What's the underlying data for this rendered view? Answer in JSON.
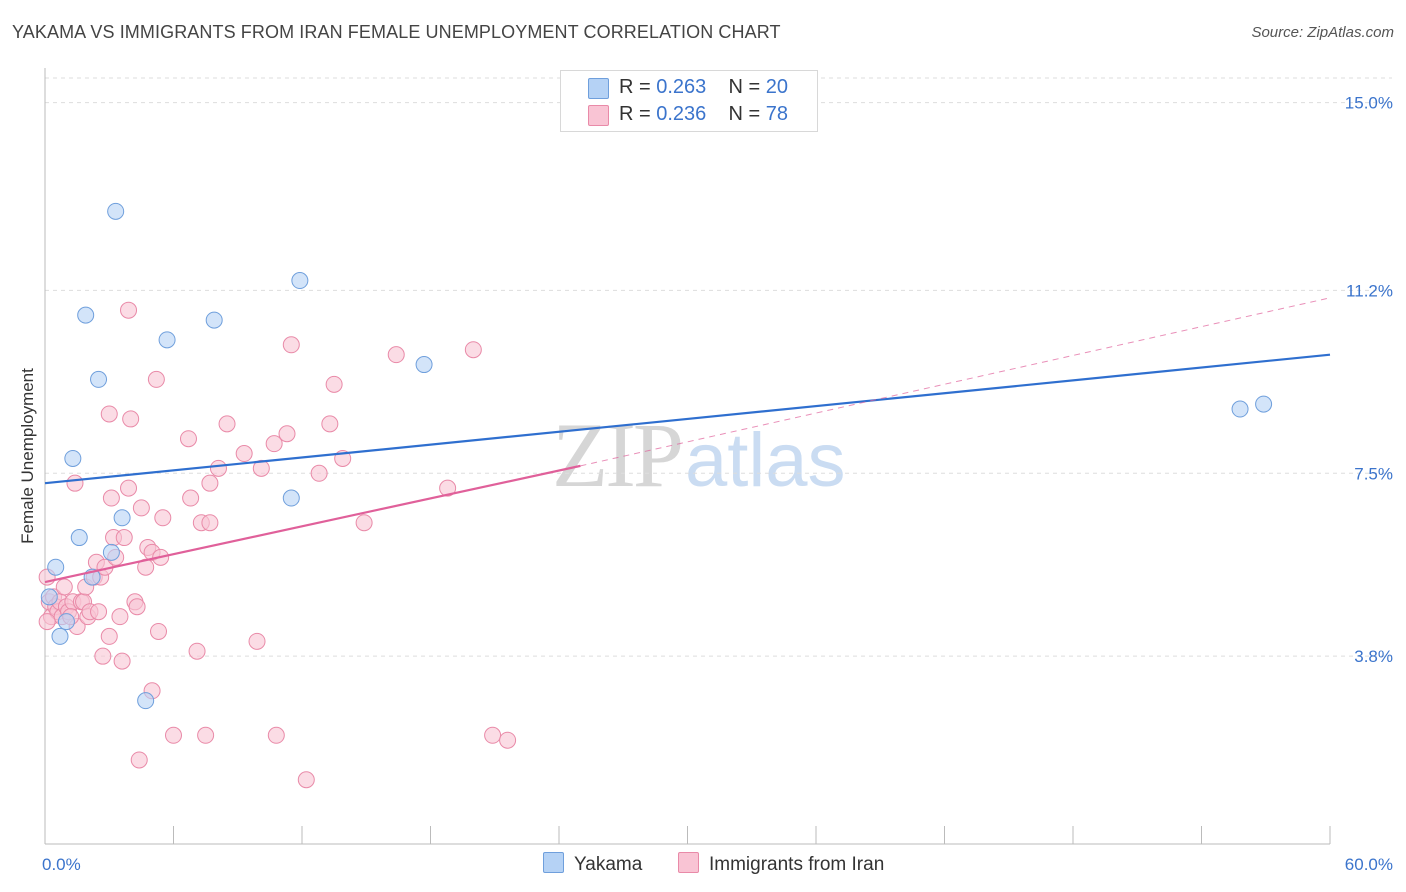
{
  "title": "YAKAMA VS IMMIGRANTS FROM IRAN FEMALE UNEMPLOYMENT CORRELATION CHART",
  "source": "Source: ZipAtlas.com",
  "watermark": {
    "zip": "ZIP",
    "atlas": "atlas"
  },
  "legend_top": [
    {
      "r_label": "R = ",
      "r_value": "0.263",
      "n_label": "N = ",
      "n_value": "20"
    },
    {
      "r_label": "R = ",
      "r_value": "0.236",
      "n_label": "N = ",
      "n_value": "78"
    }
  ],
  "legend_bottom": [
    "Yakama",
    "Immigrants from Iran"
  ],
  "colors": {
    "yakama_fill": "#b5d2f5",
    "yakama_stroke": "#6f9fdc",
    "yakama_line": "#2f6fcf",
    "iran_fill": "#f9c4d4",
    "iran_stroke": "#e98aa8",
    "iran_line": "#e0609a",
    "tick_label": "#3b74cc",
    "grid": "#dddddd"
  },
  "chart_data": {
    "type": "scatter",
    "title": "YAKAMA VS IMMIGRANTS FROM IRAN FEMALE UNEMPLOYMENT CORRELATION CHART",
    "xlabel": "",
    "ylabel": "Female Unemployment",
    "xlim": [
      0,
      60
    ],
    "ylim": [
      0,
      15.7
    ],
    "x_tick_labels": [
      {
        "value": 0,
        "label": "0.0%"
      },
      {
        "value": 60,
        "label": "60.0%"
      }
    ],
    "y_ticks": [
      {
        "value": 3.8,
        "label": "3.8%"
      },
      {
        "value": 7.5,
        "label": "7.5%"
      },
      {
        "value": 11.2,
        "label": "11.2%"
      },
      {
        "value": 15.0,
        "label": "15.0%"
      }
    ],
    "series": [
      {
        "name": "Yakama",
        "r": 0.263,
        "n": 20,
        "trend": {
          "x": [
            0,
            60
          ],
          "y": [
            7.3,
            9.9
          ],
          "dashed_extension": false
        },
        "points": [
          [
            0.5,
            5.6
          ],
          [
            0.7,
            4.2
          ],
          [
            1.0,
            4.5
          ],
          [
            1.3,
            7.8
          ],
          [
            1.6,
            6.2
          ],
          [
            1.9,
            10.7
          ],
          [
            2.2,
            5.4
          ],
          [
            2.5,
            9.4
          ],
          [
            3.1,
            5.9
          ],
          [
            3.3,
            12.8
          ],
          [
            3.6,
            6.6
          ],
          [
            4.7,
            2.9
          ],
          [
            5.7,
            10.2
          ],
          [
            7.9,
            10.6
          ],
          [
            11.5,
            7.0
          ],
          [
            11.9,
            11.4
          ],
          [
            17.7,
            9.7
          ],
          [
            55.8,
            8.8
          ],
          [
            56.9,
            8.9
          ],
          [
            0.2,
            5.0
          ]
        ]
      },
      {
        "name": "Immigrants from Iran",
        "r": 0.236,
        "n": 78,
        "trend": {
          "x": [
            0,
            25
          ],
          "y": [
            5.3,
            7.65
          ],
          "dashed_extension": {
            "x": [
              25,
              60
            ],
            "y": [
              7.65,
              11.05
            ]
          }
        },
        "points": [
          [
            0.1,
            5.4
          ],
          [
            0.2,
            4.9
          ],
          [
            0.3,
            4.6
          ],
          [
            0.4,
            5.0
          ],
          [
            0.5,
            4.8
          ],
          [
            0.6,
            4.7
          ],
          [
            0.7,
            4.9
          ],
          [
            0.8,
            4.6
          ],
          [
            0.9,
            5.2
          ],
          [
            1.0,
            4.8
          ],
          [
            1.1,
            4.7
          ],
          [
            1.3,
            4.9
          ],
          [
            1.4,
            7.3
          ],
          [
            1.5,
            4.4
          ],
          [
            1.7,
            4.9
          ],
          [
            1.8,
            4.9
          ],
          [
            1.9,
            5.2
          ],
          [
            2.0,
            4.6
          ],
          [
            2.1,
            4.7
          ],
          [
            2.3,
            5.4
          ],
          [
            2.4,
            5.7
          ],
          [
            2.5,
            4.7
          ],
          [
            2.6,
            5.4
          ],
          [
            2.7,
            3.8
          ],
          [
            2.8,
            5.6
          ],
          [
            3.0,
            4.2
          ],
          [
            3.0,
            8.7
          ],
          [
            3.1,
            7.0
          ],
          [
            3.2,
            6.2
          ],
          [
            3.3,
            5.8
          ],
          [
            3.5,
            4.6
          ],
          [
            3.6,
            3.7
          ],
          [
            3.7,
            6.2
          ],
          [
            3.9,
            10.8
          ],
          [
            3.9,
            7.2
          ],
          [
            4.0,
            8.6
          ],
          [
            4.2,
            4.9
          ],
          [
            4.3,
            4.8
          ],
          [
            4.4,
            1.7
          ],
          [
            4.5,
            6.8
          ],
          [
            4.7,
            5.6
          ],
          [
            4.8,
            6.0
          ],
          [
            5.0,
            3.1
          ],
          [
            5.0,
            5.9
          ],
          [
            5.2,
            9.4
          ],
          [
            5.3,
            4.3
          ],
          [
            5.4,
            5.8
          ],
          [
            5.5,
            6.6
          ],
          [
            6.0,
            2.2
          ],
          [
            6.7,
            8.2
          ],
          [
            6.8,
            7.0
          ],
          [
            7.1,
            3.9
          ],
          [
            7.3,
            6.5
          ],
          [
            7.5,
            2.2
          ],
          [
            7.7,
            6.5
          ],
          [
            7.7,
            7.3
          ],
          [
            8.1,
            7.6
          ],
          [
            8.5,
            8.5
          ],
          [
            9.3,
            7.9
          ],
          [
            9.9,
            4.1
          ],
          [
            10.1,
            7.6
          ],
          [
            10.7,
            8.1
          ],
          [
            10.8,
            2.2
          ],
          [
            11.3,
            8.3
          ],
          [
            11.5,
            10.1
          ],
          [
            12.2,
            1.3
          ],
          [
            12.8,
            7.5
          ],
          [
            13.3,
            8.5
          ],
          [
            13.5,
            9.3
          ],
          [
            13.9,
            7.8
          ],
          [
            14.9,
            6.5
          ],
          [
            16.4,
            9.9
          ],
          [
            18.8,
            7.2
          ],
          [
            20.0,
            10.0
          ],
          [
            20.9,
            2.2
          ],
          [
            21.6,
            2.1
          ],
          [
            0.1,
            4.5
          ],
          [
            1.2,
            4.6
          ]
        ]
      }
    ]
  }
}
